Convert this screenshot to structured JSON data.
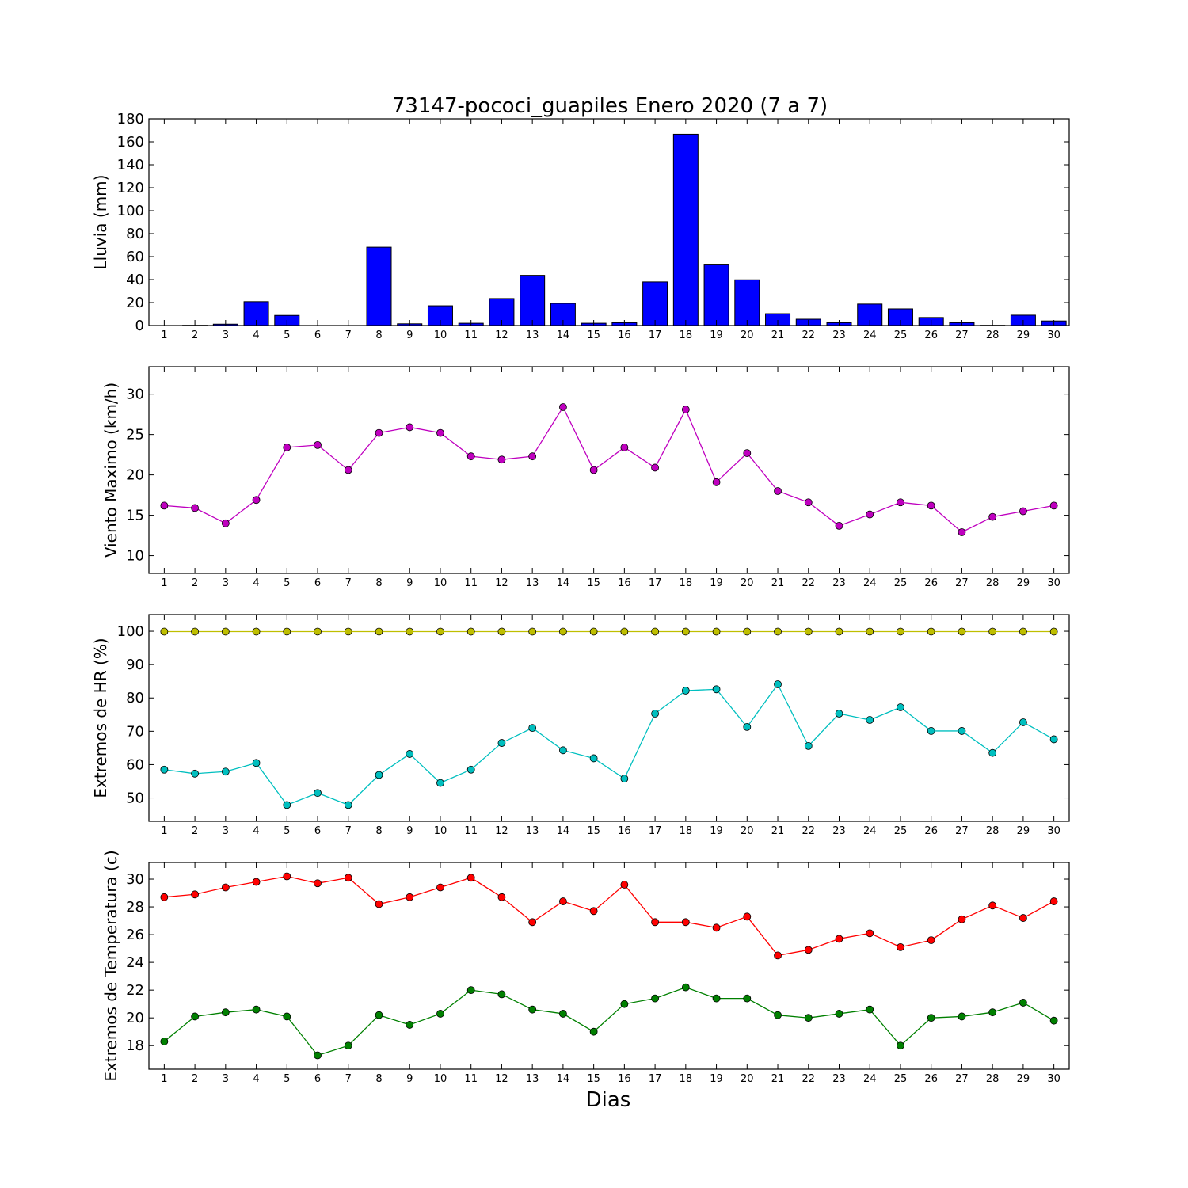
{
  "chart_data": {
    "title": "73147-pococi_guapiles Enero 2020  (7 a 7)",
    "xlabel": "Dias",
    "days": [
      1,
      2,
      3,
      4,
      5,
      6,
      7,
      8,
      9,
      10,
      11,
      12,
      13,
      14,
      15,
      16,
      17,
      18,
      19,
      20,
      21,
      22,
      23,
      24,
      25,
      26,
      27,
      28,
      29,
      30
    ],
    "panels": [
      {
        "type": "bar",
        "ylabel": "Lluvia (mm)",
        "ylim": [
          0,
          180
        ],
        "yticks": [
          0,
          20,
          40,
          60,
          80,
          100,
          120,
          140,
          160,
          180
        ],
        "series": [
          {
            "color": "#0000ff",
            "values": [
              0,
              0.2,
              1.2,
              20.8,
              8.8,
              0,
              0,
              68.2,
              1.5,
              17.2,
              2.0,
              23.5,
              43.7,
              19.3,
              2.0,
              2.5,
              38.0,
              166.6,
              53.4,
              39.8,
              10.3,
              5.5,
              2.5,
              18.7,
              14.5,
              7.0,
              2.5,
              0.2,
              9.0,
              4.0
            ]
          }
        ]
      },
      {
        "type": "line",
        "ylabel": "Viento Maximo (km/h)",
        "ylim": [
          7.8,
          33.4
        ],
        "yticks": [
          10,
          15,
          20,
          25,
          30
        ],
        "series": [
          {
            "color": "#bf00bf",
            "values": [
              16.2,
              15.9,
              14.0,
              16.9,
              23.4,
              23.7,
              20.6,
              25.2,
              25.9,
              25.2,
              22.3,
              21.9,
              22.3,
              28.4,
              20.6,
              23.4,
              20.9,
              28.1,
              19.1,
              22.7,
              18.0,
              16.6,
              13.7,
              15.1,
              16.6,
              16.2,
              12.9,
              14.8,
              15.5,
              16.2
            ]
          }
        ]
      },
      {
        "type": "line",
        "ylabel": "Extremos de HR (%)",
        "ylim": [
          43,
          105
        ],
        "yticks": [
          50,
          60,
          70,
          80,
          90,
          100
        ],
        "series": [
          {
            "color": "#bfbf00",
            "values": [
              99.9,
              99.9,
              99.9,
              99.9,
              99.9,
              99.9,
              99.9,
              99.9,
              99.9,
              99.9,
              99.9,
              99.9,
              99.9,
              99.9,
              99.9,
              99.9,
              99.9,
              99.9,
              99.9,
              99.9,
              99.9,
              99.9,
              99.9,
              99.9,
              99.9,
              99.9,
              99.9,
              99.9,
              99.9,
              99.9
            ]
          },
          {
            "color": "#00bfbf",
            "values": [
              58.5,
              57.3,
              57.9,
              60.5,
              47.9,
              51.5,
              47.9,
              56.9,
              63.2,
              54.5,
              58.5,
              66.5,
              71.0,
              64.3,
              61.9,
              55.8,
              75.3,
              82.2,
              82.6,
              71.3,
              84.1,
              65.6,
              75.3,
              73.4,
              77.2,
              70.1,
              70.1,
              63.5,
              72.7,
              67.6
            ]
          }
        ]
      },
      {
        "type": "line",
        "ylabel": "Extremos de Temperatura (c)",
        "ylim": [
          16.3,
          31.2
        ],
        "yticks": [
          18,
          20,
          22,
          24,
          26,
          28,
          30
        ],
        "series": [
          {
            "color": "#ff0000",
            "values": [
              28.7,
              28.9,
              29.4,
              29.8,
              30.2,
              29.7,
              30.1,
              28.2,
              28.7,
              29.4,
              30.1,
              28.7,
              26.9,
              28.4,
              27.7,
              29.6,
              26.9,
              26.9,
              26.5,
              27.3,
              24.5,
              24.9,
              25.7,
              26.1,
              25.1,
              25.6,
              27.1,
              28.1,
              27.2,
              28.4
            ]
          },
          {
            "color": "#008000",
            "values": [
              18.3,
              20.1,
              20.4,
              20.6,
              20.1,
              17.3,
              18.0,
              20.2,
              19.5,
              20.3,
              22.0,
              21.7,
              20.6,
              20.3,
              19.0,
              21.0,
              21.4,
              22.2,
              21.4,
              21.4,
              20.2,
              20.0,
              20.3,
              20.6,
              18.0,
              20.0,
              20.1,
              20.4,
              21.1,
              19.8
            ]
          }
        ]
      }
    ]
  }
}
